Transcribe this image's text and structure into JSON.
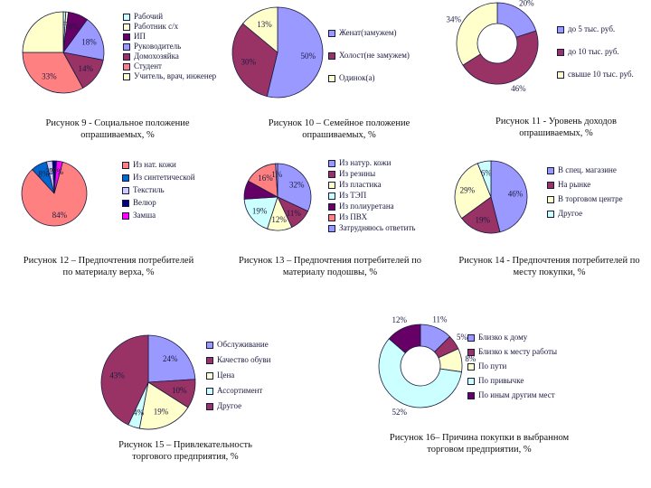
{
  "colors": {
    "lavender": "#9999ff",
    "plum": "#993366",
    "cream": "#ffffcc",
    "lightcyan": "#ccffff",
    "purple": "#660066",
    "salmon": "#ff8080",
    "blue": "#0066cc",
    "lightblue": "#ccccff",
    "navy": "#000080",
    "magenta": "#ff00ff",
    "yellow": "#ffff00",
    "cyan": "#00ffff"
  },
  "chart_data": [
    {
      "type": "pie",
      "caption": "Рисунок 9 - Социальное положение опрашиваемых, %",
      "categories": [
        "Рабочий",
        "Работник с/х",
        "ИП",
        "Руководитель",
        "Домохозяйка",
        "Студент",
        "Учитель, врач, инженер"
      ],
      "values": [
        1,
        1,
        8,
        18,
        14,
        33,
        25
      ],
      "labels": [
        "1%",
        "1%",
        "8%",
        "18%",
        "14%",
        "33%",
        ""
      ]
    },
    {
      "type": "pie",
      "caption": "Рисунок 10 – Семейное положение опрашиваемых, %",
      "categories": [
        "Женат(замужем)",
        "Холост(не замужем)",
        "Одинок(а)"
      ],
      "values": [
        50,
        30,
        13
      ],
      "labels": [
        "50%",
        "30%",
        "13%"
      ]
    },
    {
      "type": "donut",
      "caption": "Рисунок 11 - Уровень доходов опрашиваемых, %",
      "categories": [
        "до 5 тыс. руб.",
        "до 10 тыс. руб.",
        "свыше 10 тыс. руб."
      ],
      "values": [
        20,
        46,
        34
      ],
      "labels": [
        "20%",
        "46%",
        "34%"
      ]
    },
    {
      "type": "pie",
      "caption": "Рисунок 12 – Предпочтения потребителей по материалу верха, %",
      "categories": [
        "Из нат. кожи",
        "Из синтетической",
        "Текстиль",
        "Велюр",
        "Замша"
      ],
      "values": [
        84,
        8,
        3,
        2,
        3
      ],
      "labels": [
        "84%",
        "8%",
        "3%",
        "2%",
        "3%"
      ]
    },
    {
      "type": "pie",
      "caption": "Рисунок 13 – Предпочтения потребителей по материалу подошвы, %",
      "categories": [
        "Из натур. кожи",
        "Из резины",
        "Из пластика",
        "Из ТЭП",
        "Из полиуретана",
        "Из ПВХ",
        "Затрудняюсь ответить"
      ],
      "values": [
        32,
        11,
        12,
        19,
        9,
        16,
        1
      ],
      "labels": [
        "32%",
        "11%",
        "12%",
        "19%",
        "",
        "16%",
        "1%"
      ]
    },
    {
      "type": "pie",
      "caption": "Рисунок 14 - Предпочтения потребителей по месту покупки, %",
      "categories": [
        "В спец. магазине",
        "На рынке",
        "В торговом центре",
        "Другое"
      ],
      "values": [
        46,
        19,
        29,
        6
      ],
      "labels": [
        "46%",
        "19%",
        "29%",
        "6%"
      ]
    },
    {
      "type": "pie",
      "caption": "Рисунок 15 – Привлекательность торгового предприятия, %",
      "categories": [
        "Обслуживание",
        "Качество обуви",
        "Цена",
        "Ассортимент",
        "Другое"
      ],
      "values": [
        24,
        10,
        19,
        4,
        43
      ],
      "labels": [
        "24%",
        "10%",
        "19%",
        "4%",
        "43%"
      ]
    },
    {
      "type": "donut",
      "caption": "Рисунок 16– Причина покупки в выбранном торговом предприятии, %",
      "categories": [
        "Близко к дому",
        "Близко к месту работы",
        "По пути",
        "По привычке",
        "По иным другим мест"
      ],
      "values": [
        11,
        5,
        8,
        52,
        12
      ],
      "labels": [
        "11%",
        "5%",
        "8%",
        "52%",
        "12%"
      ]
    }
  ]
}
